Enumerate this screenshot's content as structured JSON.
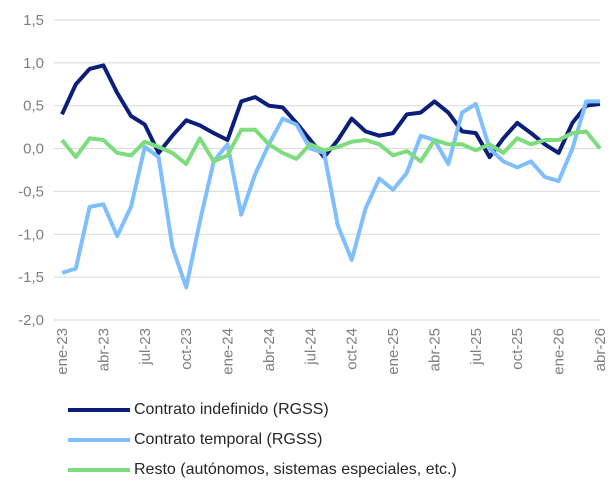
{
  "chart_data": {
    "type": "line",
    "categories": [
      "ene-23",
      null,
      null,
      "abr-23",
      null,
      null,
      "jul-23",
      null,
      null,
      "oct-23",
      null,
      null,
      "ene-24",
      null,
      null,
      "abr-24",
      null,
      null,
      "jul-24",
      null,
      null,
      "oct-24",
      null,
      null,
      "ene-25",
      null,
      null,
      "abr-25",
      null,
      null,
      "jul-25",
      null,
      null,
      "oct-25",
      null,
      null,
      "ene-26",
      null,
      null,
      "abr-26"
    ],
    "series": [
      {
        "name": "Contrato indefinido (RGSS)",
        "color": "#0b1f7a",
        "values": [
          0.4,
          0.75,
          0.93,
          0.97,
          0.65,
          0.38,
          0.28,
          -0.05,
          0.15,
          0.33,
          0.27,
          0.18,
          0.1,
          0.55,
          0.6,
          0.5,
          0.48,
          0.3,
          0.1,
          -0.1,
          0.1,
          0.35,
          0.2,
          0.15,
          0.18,
          0.4,
          0.42,
          0.55,
          0.42,
          0.2,
          0.18,
          -0.1,
          0.12,
          0.3,
          0.18,
          0.05,
          -0.05,
          0.3,
          0.5,
          0.52
        ]
      },
      {
        "name": "Contrato temporal (RGSS)",
        "color": "#7fbfff",
        "values": [
          -1.45,
          -1.4,
          -0.68,
          -0.65,
          -1.02,
          -0.68,
          0.02,
          -0.1,
          -1.15,
          -1.62,
          -0.85,
          -0.15,
          0.05,
          -0.77,
          -0.3,
          0.05,
          0.35,
          0.28,
          0.0,
          -0.05,
          -0.9,
          -1.3,
          -0.7,
          -0.35,
          -0.48,
          -0.28,
          0.15,
          0.1,
          -0.18,
          0.42,
          0.52,
          0.0,
          -0.15,
          -0.22,
          -0.15,
          -0.33,
          -0.38,
          0.0,
          0.55,
          0.55
        ]
      },
      {
        "name": "Resto (autónomos, sistemas especiales, etc.)",
        "color": "#7ddc7d",
        "values": [
          0.1,
          -0.1,
          0.12,
          0.1,
          -0.05,
          -0.08,
          0.08,
          0.02,
          -0.05,
          -0.18,
          0.12,
          -0.15,
          -0.08,
          0.22,
          0.22,
          0.05,
          -0.05,
          -0.12,
          0.05,
          -0.02,
          0.02,
          0.08,
          0.1,
          0.05,
          -0.08,
          -0.03,
          -0.15,
          0.1,
          0.05,
          0.05,
          -0.02,
          0.05,
          -0.05,
          0.12,
          0.05,
          0.1,
          0.1,
          0.18,
          0.2,
          0.0
        ]
      }
    ],
    "ylim": [
      -2,
      1.5
    ],
    "yticks": [
      {
        "value": 1.5,
        "label": "1,5"
      },
      {
        "value": 1,
        "label": "1,0"
      },
      {
        "value": 0.5,
        "label": "0,5"
      },
      {
        "value": 0,
        "label": "0,0"
      },
      {
        "value": -0.5,
        "label": "-0,5"
      },
      {
        "value": -1,
        "label": "-1,0"
      },
      {
        "value": -1.5,
        "label": "-1,5"
      },
      {
        "value": -2,
        "label": "-2,0"
      }
    ],
    "grid": true
  }
}
